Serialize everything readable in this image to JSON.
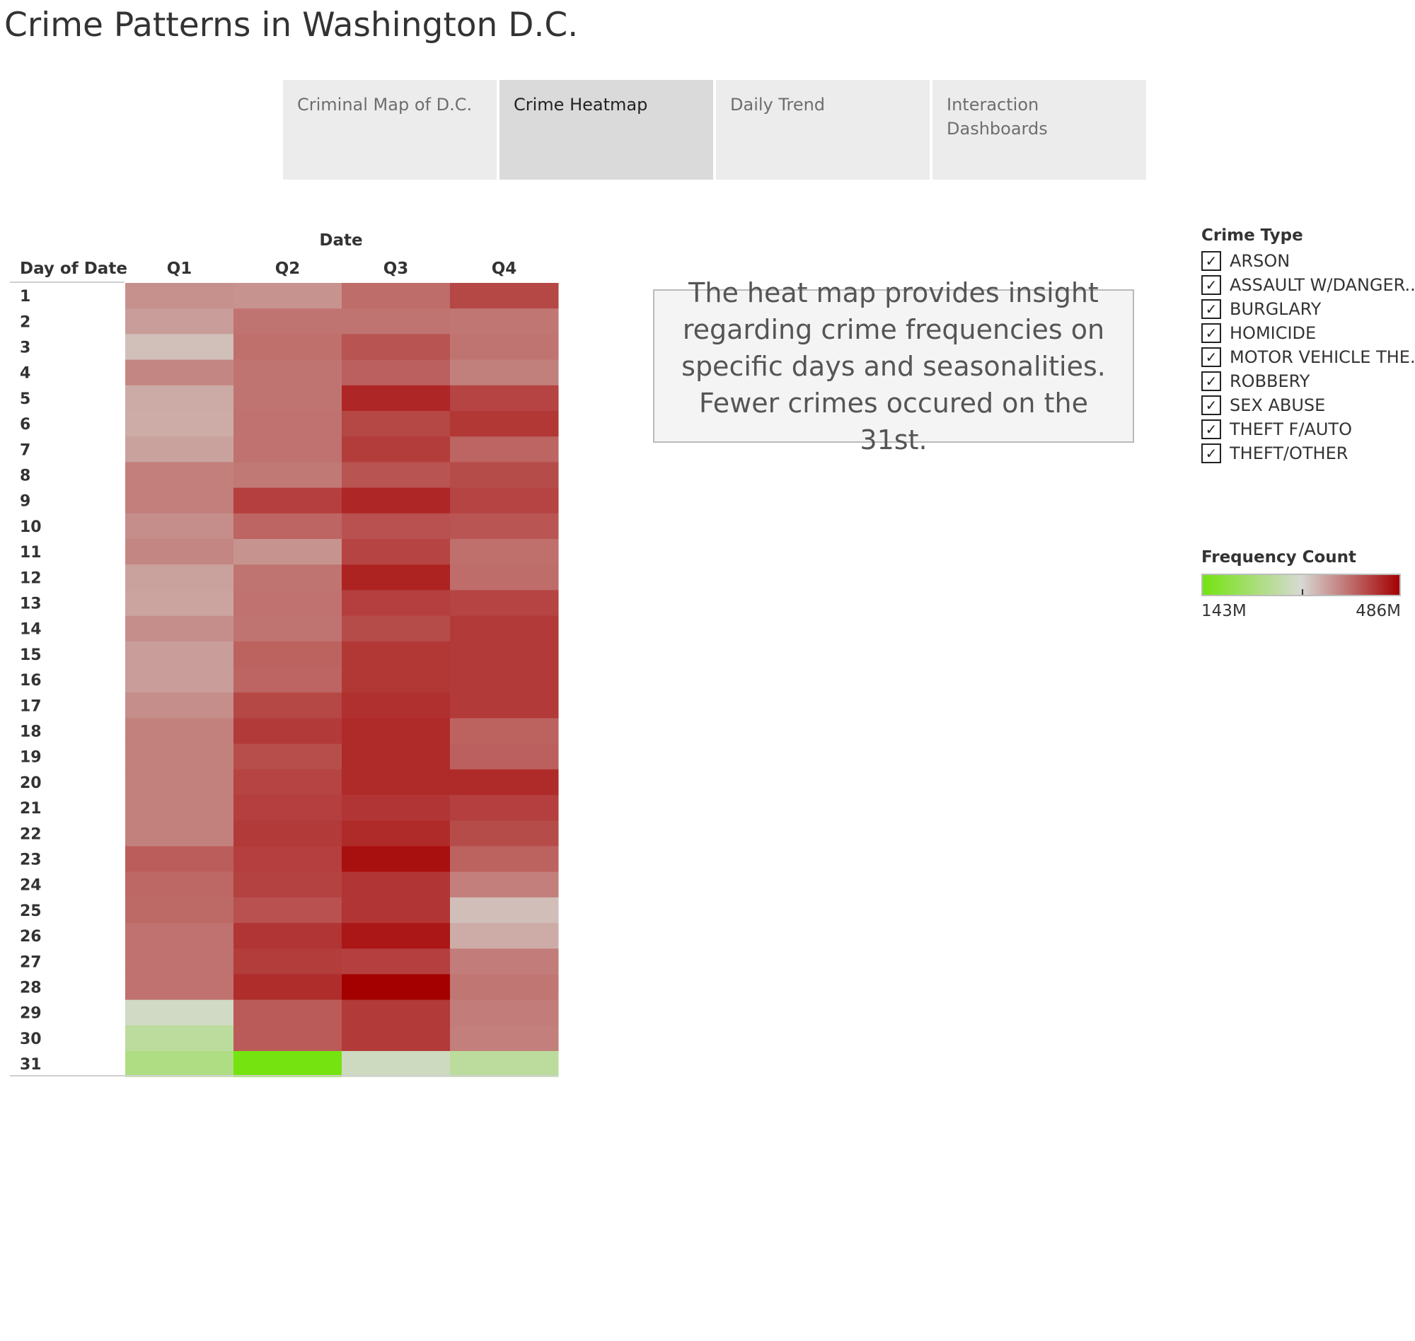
{
  "page": {
    "title": "Crime Patterns in Washington D.C."
  },
  "tabs": [
    {
      "label_lines": [
        "Criminal Map of D.C."
      ],
      "active": false
    },
    {
      "label_lines": [
        "Crime Heatmap"
      ],
      "active": true
    },
    {
      "label_lines": [
        "Daily Trend"
      ],
      "active": false
    },
    {
      "label_lines": [
        "Interaction",
        "Dashboards"
      ],
      "active": false
    }
  ],
  "annotation": {
    "lines": [
      "The heat map provides insight",
      "regarding crime frequencies on",
      "specific days and seasonalities.",
      "Fewer crimes occured on the 31st."
    ]
  },
  "crime_type_legend": {
    "title": "Crime Type",
    "check_glyph": "✓",
    "items": [
      {
        "label": "ARSON",
        "checked": true
      },
      {
        "label": "ASSAULT W/DANGER..",
        "checked": true
      },
      {
        "label": "BURGLARY",
        "checked": true
      },
      {
        "label": "HOMICIDE",
        "checked": true
      },
      {
        "label": "MOTOR VEHICLE THE..",
        "checked": true
      },
      {
        "label": "ROBBERY",
        "checked": true
      },
      {
        "label": "SEX ABUSE",
        "checked": true
      },
      {
        "label": "THEFT F/AUTO",
        "checked": true
      },
      {
        "label": "THEFT/OTHER",
        "checked": true
      }
    ]
  },
  "color_legend": {
    "title": "Frequency Count",
    "min_label": "143M",
    "max_label": "486M"
  },
  "chart_data": {
    "type": "heatmap",
    "column_header": "Date",
    "row_header": "Day of Date",
    "columns": [
      "Q1",
      "Q2",
      "Q3",
      "Q4"
    ],
    "rows": [
      "1",
      "2",
      "3",
      "4",
      "5",
      "6",
      "7",
      "8",
      "9",
      "10",
      "11",
      "12",
      "13",
      "14",
      "15",
      "16",
      "17",
      "18",
      "19",
      "20",
      "21",
      "22",
      "23",
      "24",
      "25",
      "26",
      "27",
      "28",
      "29",
      "30",
      "31"
    ],
    "values": [
      [
        372,
        370,
        400,
        430
      ],
      [
        362,
        394,
        394,
        392
      ],
      [
        335,
        398,
        420,
        394
      ],
      [
        380,
        394,
        410,
        385
      ],
      [
        352,
        394,
        456,
        432
      ],
      [
        350,
        396,
        430,
        442
      ],
      [
        358,
        396,
        438,
        406
      ],
      [
        386,
        390,
        420,
        426
      ],
      [
        386,
        436,
        456,
        432
      ],
      [
        374,
        406,
        422,
        418
      ],
      [
        380,
        370,
        432,
        398
      ],
      [
        358,
        394,
        458,
        400
      ],
      [
        356,
        396,
        436,
        432
      ],
      [
        374,
        394,
        426,
        440
      ],
      [
        362,
        408,
        442,
        440
      ],
      [
        362,
        406,
        442,
        440
      ],
      [
        374,
        430,
        448,
        440
      ],
      [
        384,
        440,
        452,
        408
      ],
      [
        384,
        424,
        452,
        410
      ],
      [
        384,
        432,
        452,
        452
      ],
      [
        384,
        436,
        444,
        436
      ],
      [
        384,
        440,
        452,
        426
      ],
      [
        412,
        436,
        474,
        408
      ],
      [
        404,
        434,
        444,
        386
      ],
      [
        402,
        422,
        444,
        336
      ],
      [
        396,
        444,
        468,
        350
      ],
      [
        396,
        438,
        436,
        388
      ],
      [
        396,
        450,
        486,
        392
      ],
      [
        302,
        414,
        440,
        388
      ],
      [
        266,
        414,
        440,
        386
      ],
      [
        245,
        143,
        297,
        266
      ]
    ],
    "color_scale": {
      "min": 143,
      "max": 486,
      "unit": "M",
      "low_color": "#74e310",
      "mid_color": "#d7d9d3",
      "high_color": "#a50000"
    }
  }
}
